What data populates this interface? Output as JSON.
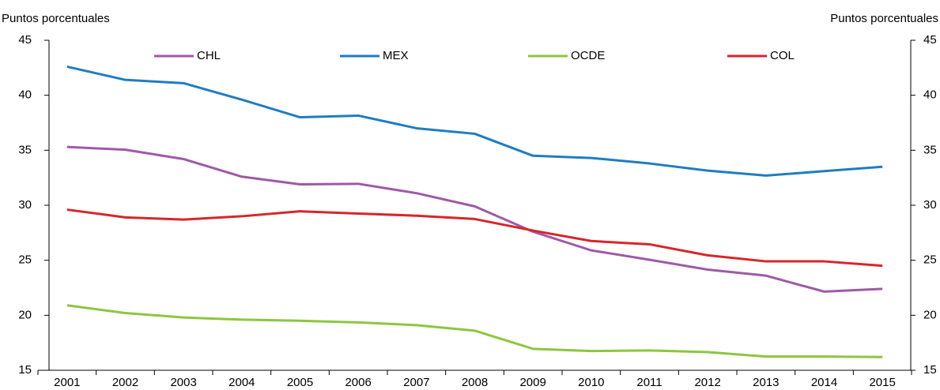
{
  "chart_data": {
    "type": "line",
    "y_label": "Puntos porcentuales",
    "y2_label": "Puntos porcentuales",
    "categories": [
      "2001",
      "2002",
      "2003",
      "2004",
      "2005",
      "2006",
      "2007",
      "2008",
      "2009",
      "2010",
      "2011",
      "2012",
      "2013",
      "2014",
      "2015"
    ],
    "series": [
      {
        "name": "CHL",
        "color": "#9e5aa6",
        "values": [
          35.3,
          35.05,
          34.2,
          32.6,
          31.9,
          31.95,
          31.1,
          29.9,
          27.6,
          25.9,
          25.05,
          24.15,
          23.6,
          22.15,
          22.4
        ]
      },
      {
        "name": "MEX",
        "color": "#1f7dc1",
        "values": [
          42.6,
          41.4,
          41.1,
          39.6,
          38.0,
          38.15,
          37.0,
          36.5,
          34.5,
          34.3,
          33.8,
          33.15,
          32.7,
          33.1,
          33.5
        ]
      },
      {
        "name": "OCDE",
        "color": "#8dc63f",
        "values": [
          20.9,
          20.2,
          19.8,
          19.6,
          19.5,
          19.35,
          19.1,
          18.6,
          16.95,
          16.75,
          16.8,
          16.65,
          16.25,
          16.25,
          16.2
        ]
      },
      {
        "name": "COL",
        "color": "#d7262b",
        "values": [
          29.6,
          28.9,
          28.7,
          29.0,
          29.45,
          29.25,
          29.05,
          28.75,
          27.7,
          26.75,
          26.45,
          25.45,
          24.9,
          24.9,
          24.5
        ]
      }
    ],
    "ylim": [
      15,
      45
    ],
    "yticks": [
      15,
      20,
      25,
      30,
      35,
      40,
      45
    ],
    "y2lim": [
      15,
      45
    ],
    "y2ticks": [
      15,
      20,
      25,
      30,
      35,
      40,
      45
    ],
    "grid": false,
    "legend": "top"
  }
}
